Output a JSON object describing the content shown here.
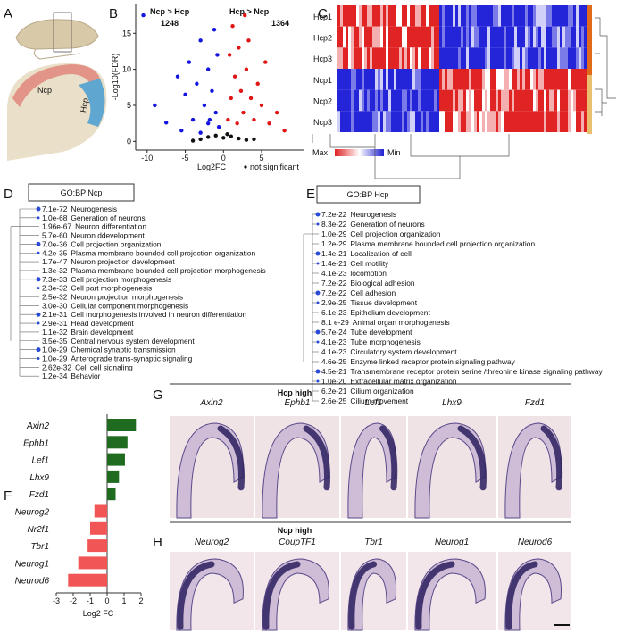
{
  "panels": {
    "letters": [
      "A",
      "B",
      "C",
      "D",
      "E",
      "F",
      "G",
      "H"
    ],
    "a": {
      "labels": [
        "Ncp",
        "Hcp"
      ]
    },
    "b": {
      "type": "scatter",
      "xlabel": "Log2FC",
      "ylabel": "-Log10(FDR)",
      "xlim": [
        -11.5,
        10.5
      ],
      "ylim": [
        -1.2,
        19
      ],
      "xticks": [
        -10,
        -5,
        0,
        5
      ],
      "yticks": [
        0,
        5,
        10,
        15
      ],
      "series": [
        {
          "name": "Ncp > Hcp",
          "count": 1248,
          "color": "#1515e0",
          "x": [
            -10.5,
            -9,
            -7.5,
            -6,
            -5,
            -4.5,
            -4,
            -3.5,
            -3,
            -2.5,
            -2,
            -1.8,
            -1.5,
            -1.2,
            -1,
            -0.8,
            -0.6,
            -5.5,
            -3,
            -2
          ],
          "values": [
            17.5,
            5,
            2.6,
            9,
            6.5,
            11,
            3,
            8,
            14,
            5,
            10,
            3,
            7,
            15.5,
            4,
            12,
            2,
            1.5,
            1.2,
            2.5
          ]
        },
        {
          "name": "Hcp > Ncp",
          "count": 1364,
          "color": "#e01515",
          "x": [
            0.6,
            0.8,
            1,
            1.2,
            1.5,
            1.8,
            2,
            2.3,
            2.6,
            3,
            3.3,
            3.6,
            4,
            4.5,
            5,
            5.5,
            6,
            7,
            8,
            2.8
          ],
          "values": [
            3,
            12,
            6,
            16,
            9,
            2.5,
            13,
            7,
            4,
            10,
            14,
            6,
            3,
            8,
            5,
            11,
            2.5,
            4,
            1.5,
            17.5
          ]
        },
        {
          "name": "not significant",
          "color": "#111111",
          "x": [
            -3,
            -2,
            -1,
            0,
            1,
            2,
            3,
            -4,
            4,
            0.5
          ],
          "values": [
            0.3,
            0.6,
            0.8,
            0.5,
            0.7,
            0.4,
            0.2,
            0.1,
            0.3,
            1.0
          ]
        }
      ]
    },
    "c": {
      "rows": [
        "Hcp1",
        "Hcp2",
        "Hcp3",
        "Ncp1",
        "Ncp2",
        "Ncp3"
      ],
      "legend": [
        "Max",
        "Min"
      ]
    },
    "d": {
      "title": "GO:BP Ncp",
      "items": [
        {
          "p": "7.1e-72",
          "term": "Neurogenesis"
        },
        {
          "p": "1.0e-68",
          "term": "Generation of neurons"
        },
        {
          "p": "1.96e-67",
          "term": "Neuron differentiation"
        },
        {
          "p": "5.7e-60",
          "term": "Neuron ddevelopment"
        },
        {
          "p": "7.0e-36",
          "term": "Cell projection organization"
        },
        {
          "p": "4.2e-35",
          "term": "Plasma membrane bounded cell projection organization"
        },
        {
          "p": "1.7e-47",
          "term": "Neuron projection development"
        },
        {
          "p": "1.3e-32",
          "term": "Plasma membrane bounded cell projection morphogenesis"
        },
        {
          "p": "7.3e-33",
          "term": "Cell projection morphogenesis"
        },
        {
          "p": "2.3e-32",
          "term": "Cell part morphogenesis"
        },
        {
          "p": "2.5e-32",
          "term": "Neuron projection morphogenesis"
        },
        {
          "p": "3.0e-30",
          "term": "Cellular component morphogenesis"
        },
        {
          "p": "2.1e-31",
          "term": "Cell morphogenesis involved in neuron differentiation"
        },
        {
          "p": "2.9e-31",
          "term": "Head development"
        },
        {
          "p": "1.1e-32",
          "term": "Brain development"
        },
        {
          "p": "3.5e-35",
          "term": "Central nervous system development"
        },
        {
          "p": "1.0e-29",
          "term": "Chemical synaptic transmission"
        },
        {
          "p": "1.0e-29",
          "term": "Anterograde trans-synaptic signaling"
        },
        {
          "p": "2.62e-32",
          "term": "Cell cell signaling"
        },
        {
          "p": "1.2e-34",
          "term": "Behavior"
        }
      ]
    },
    "e": {
      "title": "GO:BP Hcp",
      "items": [
        {
          "p": "7.2e-22",
          "term": "Neurogenesis"
        },
        {
          "p": "8.3e-22",
          "term": "Generation of neurons"
        },
        {
          "p": "1.0e-29",
          "term": "Cell projection organization"
        },
        {
          "p": "1.2e-29",
          "term": "Plasma membrane bounded cell projection organization"
        },
        {
          "p": "1.4e-21",
          "term": "Localization of cell"
        },
        {
          "p": "1.4e-21",
          "term": "Cell motility"
        },
        {
          "p": "4.1e-23",
          "term": "locomotion"
        },
        {
          "p": "7.2e-22",
          "term": "Biological adhesion"
        },
        {
          "p": "7.2e-22",
          "term": "Cell adhesion"
        },
        {
          "p": "2.9e-25",
          "term": "Tissue development"
        },
        {
          "p": "6.1e-23",
          "term": "Epithelium development"
        },
        {
          "p": "8.1 e-29",
          "term": "Animal organ morphogenesis"
        },
        {
          "p": "5.7e-24",
          "term": "Tube development"
        },
        {
          "p": "4.1e-23",
          "term": "Tube morphogenesis"
        },
        {
          "p": "4.1e-23",
          "term": "Circulatory system development"
        },
        {
          "p": "4.6e-25",
          "term": "Enzyme linked receptor protein signaling pathway"
        },
        {
          "p": "4.5e-21",
          "term": "Transmembrane receptor protein serine /threonine kinase signaling pathway"
        },
        {
          "p": "1.0e-20",
          "term": "Extracellular matrix organization"
        },
        {
          "p": "6.2e-21",
          "term": "Cilium organization"
        },
        {
          "p": "2.6e-25",
          "term": "Cilium movement"
        }
      ]
    },
    "f": {
      "type": "bar",
      "orientation": "horizontal",
      "xlabel": "Log2 FC",
      "categories": [
        "Axin2",
        "Ephb1",
        "Lef1",
        "Lhx9",
        "Fzd1",
        "Neurog2",
        "Nr2f1",
        "Tbr1",
        "Neurog1",
        "Neurod6"
      ],
      "values": [
        1.7,
        1.2,
        1.05,
        0.7,
        0.5,
        -0.75,
        -1.0,
        -1.15,
        -1.7,
        -2.3
      ],
      "colors": [
        "#1f6b1f",
        "#1f6b1f",
        "#1f6b1f",
        "#1f6b1f",
        "#1f6b1f",
        "#f25555",
        "#f25555",
        "#f25555",
        "#f25555",
        "#f25555"
      ],
      "xlim": [
        -3,
        2
      ],
      "xticks": [
        -3,
        -2,
        -1,
        0,
        1,
        2
      ]
    },
    "g": {
      "title": "Hcp high",
      "genes": [
        "Axin2",
        "Ephb1",
        "Lef1",
        "Lhx9",
        "Fzd1"
      ]
    },
    "h": {
      "title": "Ncp high",
      "genes": [
        "Neurog2",
        "CoupTF1",
        "Tbr1",
        "Neurog1",
        "Neurod6"
      ]
    }
  }
}
